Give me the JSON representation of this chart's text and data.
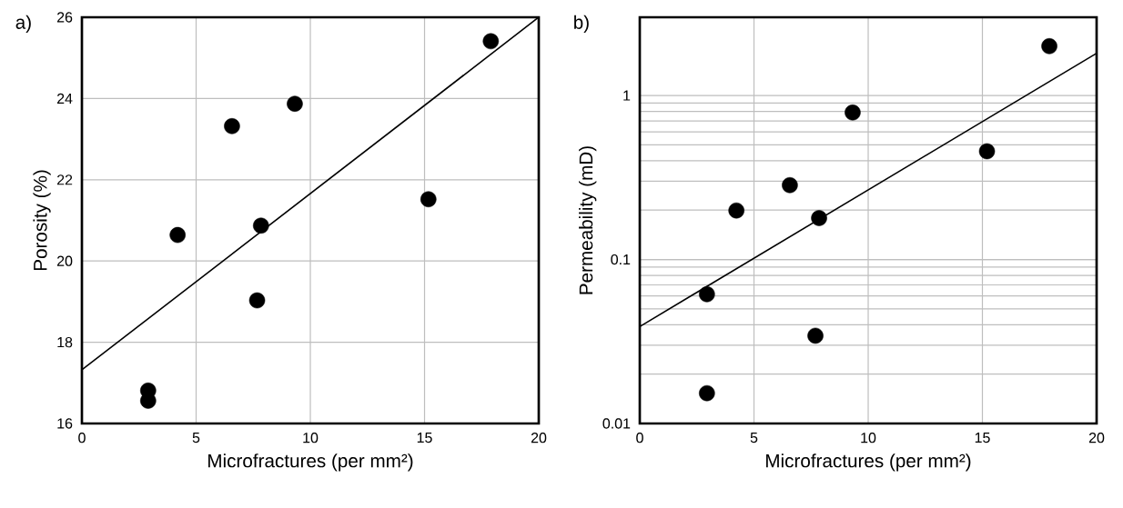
{
  "chart_data": [
    {
      "type": "scatter",
      "title": "a)",
      "xlabel": "Microfractures (per mm²)",
      "ylabel": "Porosity (%)",
      "xlim": [
        0,
        20
      ],
      "ylim": [
        16,
        26
      ],
      "xticks": [
        0,
        5,
        10,
        15,
        20
      ],
      "yticks": [
        16,
        18,
        20,
        22,
        24,
        26
      ],
      "grid": true,
      "series": [
        {
          "color": "#000000",
          "marker": "circle",
          "x": [
            2.9,
            2.9,
            4.19,
            6.57,
            7.67,
            7.84,
            9.32,
            15.17,
            17.9
          ],
          "values": [
            16.81,
            16.56,
            20.64,
            23.32,
            19.03,
            20.87,
            23.87,
            21.52,
            25.41
          ]
        },
        {
          "type": "line",
          "color": "#000000",
          "marker": "none",
          "line_style": "solid",
          "x": [
            0,
            20
          ],
          "values": [
            17.32,
            26.0
          ]
        }
      ]
    },
    {
      "type": "scatter",
      "title": "b)",
      "xlabel": "Microfractures (per mm²)",
      "ylabel": "Permeability (mD)",
      "log": "y",
      "xlim": [
        0,
        20
      ],
      "ylim": [
        0.01,
        3
      ],
      "xticks": [
        0,
        5,
        10,
        15,
        20
      ],
      "yticks": [
        0.01,
        0.1,
        1
      ],
      "grid": true,
      "series": [
        {
          "color": "#000000",
          "marker": "circle",
          "x": [
            2.94,
            2.94,
            4.23,
            6.57,
            7.69,
            7.85,
            9.32,
            15.2,
            17.93
          ],
          "values": [
            0.0153,
            0.0614,
            0.199,
            0.284,
            0.0343,
            0.179,
            0.788,
            0.457,
            2.0
          ]
        },
        {
          "type": "line",
          "color": "#000000",
          "marker": "none",
          "line_style": "solid",
          "x": [
            0,
            20
          ],
          "values": [
            0.039,
            1.81
          ]
        }
      ]
    }
  ]
}
